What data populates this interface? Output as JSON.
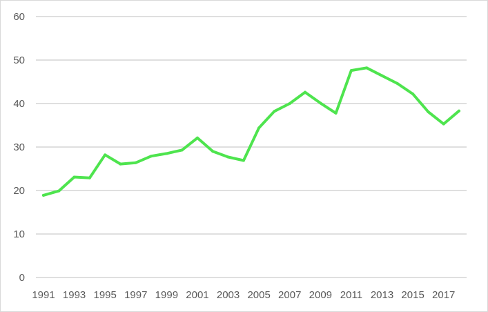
{
  "chart_data": {
    "type": "line",
    "title": "",
    "xlabel": "",
    "ylabel": "",
    "x": [
      1991,
      1992,
      1993,
      1994,
      1995,
      1996,
      1997,
      1998,
      1999,
      2000,
      2001,
      2002,
      2003,
      2004,
      2005,
      2006,
      2007,
      2008,
      2009,
      2010,
      2011,
      2012,
      2013,
      2014,
      2015,
      2016,
      2017,
      2018
    ],
    "x_tick_labels": [
      "1991",
      "1993",
      "1995",
      "1997",
      "1999",
      "2001",
      "2003",
      "2005",
      "2007",
      "2009",
      "2011",
      "2013",
      "2015",
      "2017"
    ],
    "y_tick_labels": [
      "0",
      "10",
      "20",
      "30",
      "40",
      "50",
      "60"
    ],
    "ylim": [
      0,
      60
    ],
    "grid": true,
    "legend": "none",
    "series": [
      {
        "color": "#4ee44e",
        "values": [
          18.9,
          19.9,
          23.1,
          22.9,
          28.2,
          26.1,
          26.4,
          27.9,
          28.5,
          29.3,
          32.1,
          29.0,
          27.7,
          26.9,
          34.4,
          38.2,
          40.0,
          42.6,
          40.1,
          37.8,
          47.6,
          48.2,
          46.4,
          44.6,
          42.2,
          38.1,
          35.3,
          38.3
        ]
      }
    ]
  }
}
